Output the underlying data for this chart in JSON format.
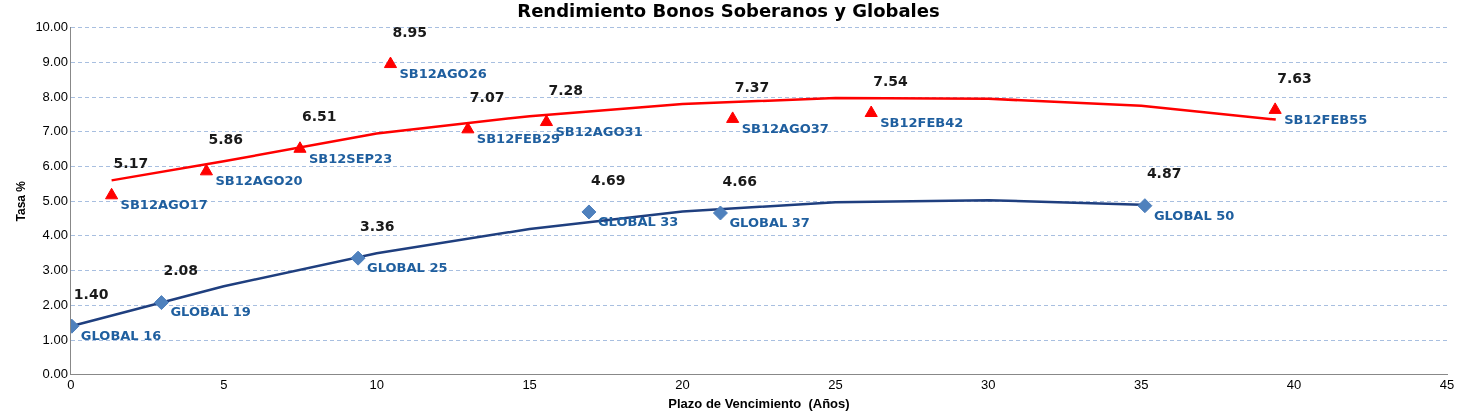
{
  "chart_data": {
    "type": "scatter",
    "title": "Rendimiento Bonos Soberanos y Globales",
    "xlabel": "Plazo de Vencimiento  (Años)",
    "ylabel": "Tasa %",
    "xlim": [
      0,
      45
    ],
    "xticks": [
      0,
      5,
      10,
      15,
      20,
      25,
      30,
      35,
      40,
      45
    ],
    "ylim": [
      0,
      10
    ],
    "yticks": [
      {
        "value": 0,
        "label": "0.00"
      },
      {
        "value": 1,
        "label": "1.00"
      },
      {
        "value": 2,
        "label": "2.00"
      },
      {
        "value": 3,
        "label": "3.00"
      },
      {
        "value": 4,
        "label": "4.00"
      },
      {
        "value": 5,
        "label": "5.00"
      },
      {
        "value": 6,
        "label": "6.00"
      },
      {
        "value": 7,
        "label": "7.00"
      },
      {
        "value": 8,
        "label": "8.00"
      },
      {
        "value": 9,
        "label": "9.00"
      },
      {
        "value": 10,
        "label": "10.00"
      }
    ],
    "grid": "y",
    "legend": false,
    "series": [
      {
        "marker": "triangle",
        "color": "#ff0000",
        "x": [
          1.33,
          4.43,
          7.49,
          10.45,
          12.98,
          15.55,
          21.64,
          26.17,
          39.38
        ],
        "values": [
          5.17,
          5.86,
          6.51,
          8.95,
          7.07,
          7.28,
          7.37,
          7.54,
          7.63
        ],
        "value_labels": [
          "5.17",
          "5.86",
          "6.51",
          "8.95",
          "7.07",
          "7.28",
          "7.37",
          "7.54",
          "7.63"
        ]
      },
      {
        "marker": "diamond",
        "color": "#4f81bd",
        "x": [
          0.03,
          2.96,
          9.39,
          16.94,
          21.24,
          35.12
        ],
        "values": [
          1.4,
          2.08,
          3.36,
          4.69,
          4.66,
          4.87
        ],
        "value_labels": [
          "1.40",
          "2.08",
          "3.36",
          "4.69",
          "4.66",
          "4.87"
        ]
      },
      {
        "type": "line",
        "color": "#ff0000",
        "x": [
          1.33,
          5,
          10,
          15,
          20,
          25,
          30,
          35,
          39.4
        ],
        "values": [
          5.6,
          6.15,
          6.95,
          7.45,
          7.8,
          7.97,
          7.95,
          7.75,
          7.35
        ]
      },
      {
        "type": "line",
        "color": "#1f3f7f",
        "x": [
          0,
          5,
          10,
          15,
          20,
          25,
          30,
          35
        ],
        "values": [
          1.4,
          2.55,
          3.5,
          4.2,
          4.7,
          4.97,
          5.03,
          4.9
        ]
      }
    ],
    "annotations": [
      {
        "text": "SB12AGO17",
        "x": 1.33,
        "y": 5.17
      },
      {
        "text": "SB12AGO20",
        "x": 4.43,
        "y": 5.86
      },
      {
        "text": "SB12SEP23",
        "x": 7.49,
        "y": 6.51
      },
      {
        "text": "SB12AGO26",
        "x": 10.45,
        "y": 8.95
      },
      {
        "text": "SB12FEB29",
        "x": 12.98,
        "y": 7.07
      },
      {
        "text": "SB12AGO31",
        "x": 15.55,
        "y": 7.28
      },
      {
        "text": "SB12AGO37",
        "x": 21.64,
        "y": 7.37
      },
      {
        "text": "SB12FEB42",
        "x": 26.17,
        "y": 7.54
      },
      {
        "text": "SB12FEB55",
        "x": 39.38,
        "y": 7.63
      },
      {
        "text": "GLOBAL 16",
        "x": 0.03,
        "y": 1.4
      },
      {
        "text": "GLOBAL 19",
        "x": 2.96,
        "y": 2.08
      },
      {
        "text": "GLOBAL 25",
        "x": 9.39,
        "y": 3.36
      },
      {
        "text": "GLOBAL 33",
        "x": 16.94,
        "y": 4.69
      },
      {
        "text": "GLOBAL 37",
        "x": 21.24,
        "y": 4.66
      },
      {
        "text": "GLOBAL 50",
        "x": 35.12,
        "y": 4.87
      }
    ]
  }
}
